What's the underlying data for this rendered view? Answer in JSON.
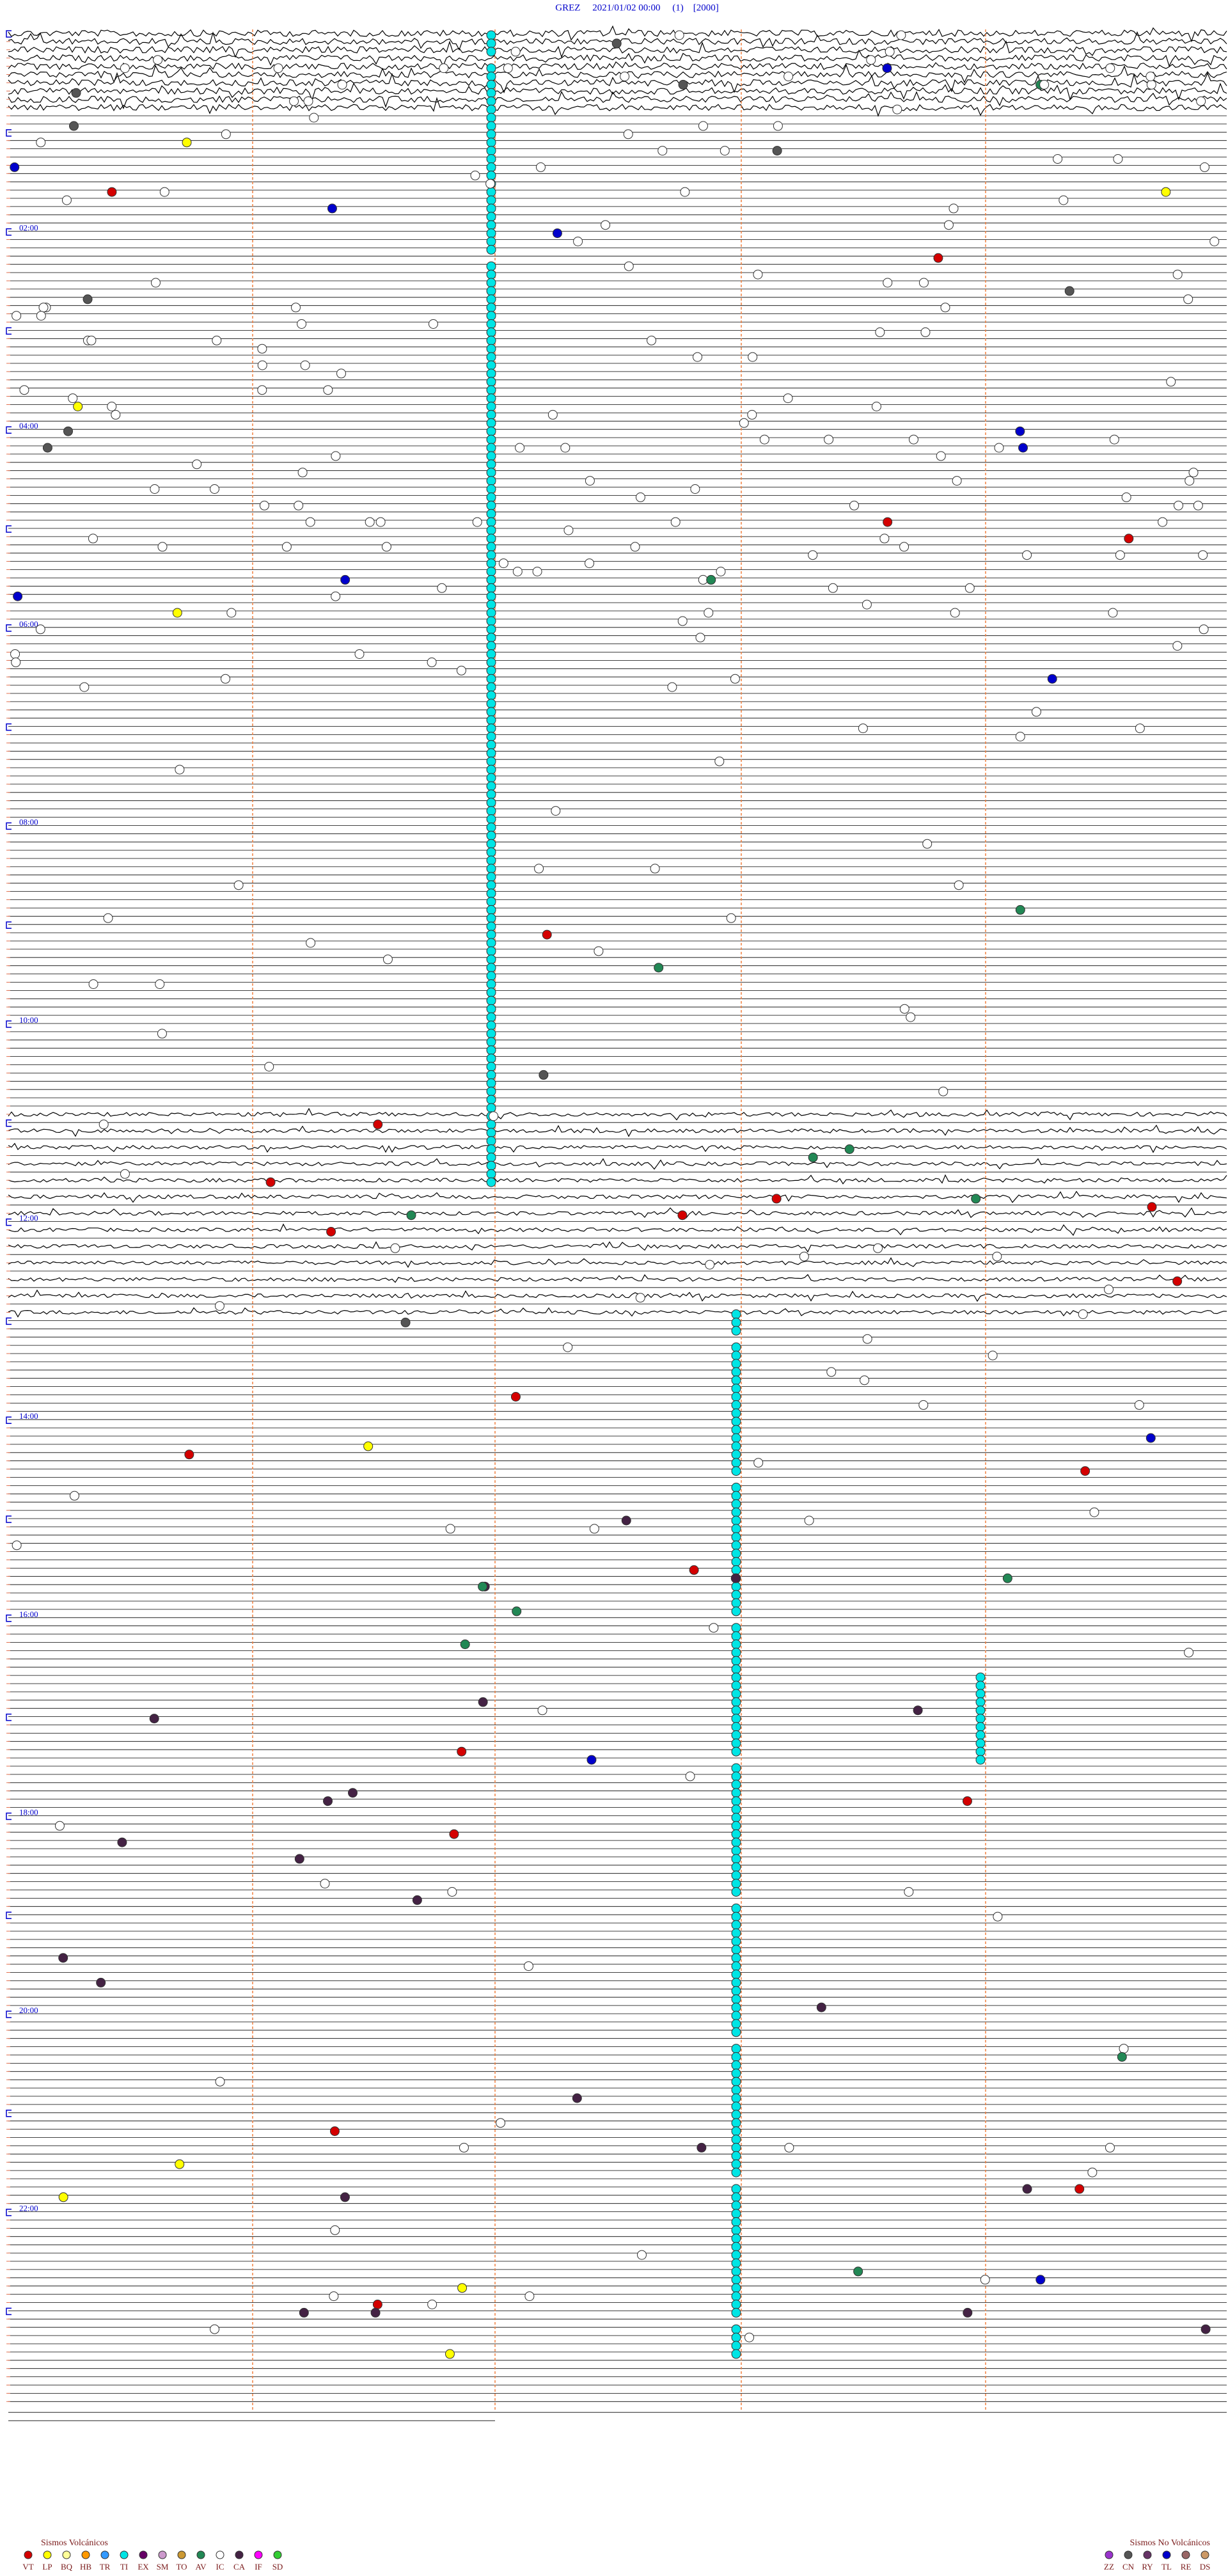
{
  "header": {
    "title": "GREZ     2021/01/02 00:00     (1)    [2000]"
  },
  "time_labels": [
    "02:00",
    "04:00",
    "06:00",
    "08:00",
    "10:00",
    "12:00",
    "14:00",
    "16:00",
    "18:00",
    "20:00",
    "22:00"
  ],
  "legend": {
    "volcanic": {
      "title": "Sismos Volcánicos",
      "items": [
        {
          "code": "VT",
          "color": "#d40000"
        },
        {
          "code": "LP",
          "color": "#ffff00"
        },
        {
          "code": "BQ",
          "color": "#ffff99"
        },
        {
          "code": "HB",
          "color": "#ff9900"
        },
        {
          "code": "TR",
          "color": "#3399ff"
        },
        {
          "code": "TI",
          "color": "#00e5e5"
        },
        {
          "code": "EX",
          "color": "#660066"
        },
        {
          "code": "SM",
          "color": "#cc99cc"
        },
        {
          "code": "TO",
          "color": "#cc9933"
        },
        {
          "code": "AV",
          "color": "#228855"
        },
        {
          "code": "IC",
          "color": "#ffffff"
        },
        {
          "code": "CA",
          "color": "#442244"
        },
        {
          "code": "IF",
          "color": "#ff00ff"
        },
        {
          "code": "SD",
          "color": "#33cc33"
        }
      ]
    },
    "non_volcanic": {
      "title": "Sismos No Volcánicos",
      "items": [
        {
          "code": "ZZ",
          "color": "#9933cc"
        },
        {
          "code": "CN",
          "color": "#555555"
        },
        {
          "code": "RY",
          "color": "#663366"
        },
        {
          "code": "TL",
          "color": "#0000cc"
        },
        {
          "code": "RE",
          "color": "#996666"
        },
        {
          "code": "DS",
          "color": "#cc9966"
        }
      ]
    }
  }
}
